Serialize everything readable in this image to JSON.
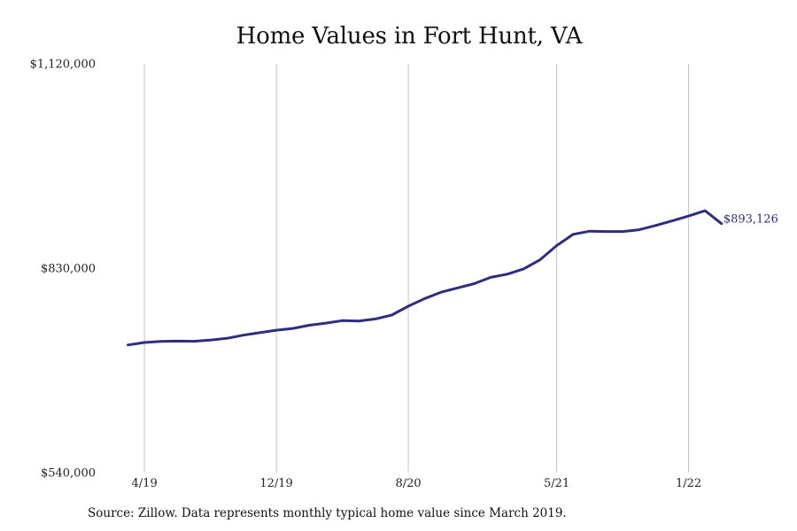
{
  "chart_data": {
    "type": "line",
    "title": "Home Values in Fort Hunt, VA",
    "xlabel": "",
    "ylabel": "",
    "x": [
      "2019-03",
      "2019-04",
      "2019-05",
      "2019-06",
      "2019-07",
      "2019-08",
      "2019-09",
      "2019-10",
      "2019-11",
      "2019-12",
      "2020-01",
      "2020-02",
      "2020-03",
      "2020-04",
      "2020-05",
      "2020-06",
      "2020-07",
      "2020-08",
      "2020-09",
      "2020-10",
      "2020-11",
      "2020-12",
      "2021-01",
      "2021-02",
      "2021-03",
      "2021-04",
      "2021-05",
      "2021-06",
      "2021-07",
      "2021-08",
      "2021-09",
      "2021-10",
      "2021-11",
      "2021-12",
      "2022-01",
      "2022-02",
      "2022-03"
    ],
    "series": [
      {
        "values": [
          721000,
          724500,
          726000,
          726500,
          726300,
          728000,
          730500,
          735000,
          738500,
          742000,
          744500,
          749000,
          752000,
          755500,
          755000,
          758000,
          763500,
          776000,
          787000,
          796000,
          802000,
          808000,
          817000,
          821500,
          829000,
          842000,
          862000,
          878000,
          882500,
          882000,
          882000,
          884500,
          890500,
          897000,
          904000,
          911500,
          893126
        ],
        "end_label": "$893,126"
      }
    ],
    "x_tick_labels": [
      "4/19",
      "12/19",
      "8/20",
      "5/21",
      "1/22"
    ],
    "x_tick_positions": [
      "2019-04",
      "2019-12",
      "2020-08",
      "2021-05",
      "2022-01"
    ],
    "y_tick_labels": [
      "$1,120,000",
      "$830,000",
      "$540,000"
    ],
    "ylim": [
      540000,
      1120000
    ],
    "grid": {
      "vertical": true,
      "horizontal": false
    },
    "legend": "none",
    "colors": {
      "line": "#2e2d7f",
      "grid": "#c4c4c4",
      "end_label": "#2e2d7f"
    },
    "source": "Source: Zillow. Data represents monthly typical home value since March 2019."
  }
}
